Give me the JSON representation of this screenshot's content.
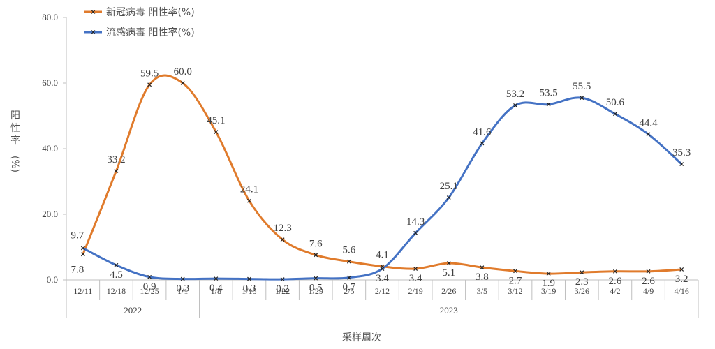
{
  "chart_data": {
    "type": "line",
    "categories": [
      "12/11",
      "12/18",
      "12/25",
      "1/1",
      "1/8",
      "1/15",
      "1/22",
      "1/29",
      "2/5",
      "2/12",
      "2/19",
      "2/26",
      "3/5",
      "3/12",
      "3/19",
      "3/26",
      "4/2",
      "4/9",
      "4/16"
    ],
    "years": [
      {
        "label": "2022",
        "start": 0,
        "end": 3
      },
      {
        "label": "2023",
        "start": 4,
        "end": 18
      }
    ],
    "series": [
      {
        "name": "新冠病毒 阳性率(%)",
        "color": "#E07B2C",
        "values": [
          7.8,
          33.2,
          59.5,
          60.0,
          45.1,
          24.1,
          12.3,
          7.6,
          5.6,
          4.1,
          3.4,
          5.1,
          3.8,
          2.7,
          1.9,
          2.3,
          2.6,
          2.6,
          3.2
        ]
      },
      {
        "name": "流感病毒 阳性率(%)",
        "color": "#4472C4",
        "values": [
          9.7,
          4.5,
          0.9,
          0.3,
          0.4,
          0.3,
          0.2,
          0.5,
          0.7,
          3.4,
          14.3,
          25.1,
          41.6,
          53.2,
          53.5,
          55.5,
          50.6,
          44.4,
          35.3
        ]
      }
    ],
    "xlabel": "采样周次",
    "ylabel": "阳性率 (%)",
    "ylim": [
      0,
      80
    ],
    "yticks": [
      "0.0",
      "20.0",
      "40.0",
      "60.0",
      "80.0"
    ],
    "legend_position": "top-left",
    "grid": false
  }
}
